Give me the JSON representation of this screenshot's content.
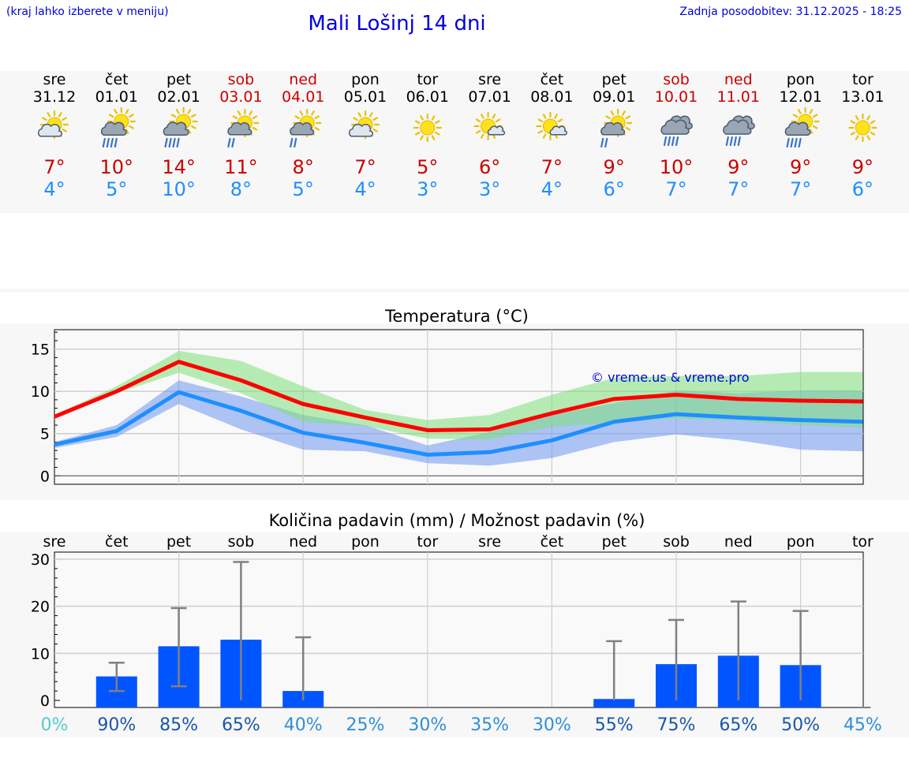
{
  "header": {
    "hint": "(kraj lahko izberete v meniju)",
    "title": "Mali Lošinj 14 dni",
    "updated": "Zadnja posodobitev: 31.12.2025 - 18:25"
  },
  "colors": {
    "weekday": "#000000",
    "weekend": "#cc0000",
    "temp_max": "#cc0000",
    "temp_min": "#1e8fff",
    "max_line": "#ff0000",
    "max_band": "#7ee07a",
    "min_line": "#1e8fff",
    "min_band": "#6f97f0",
    "precip_bar": "#0055ff",
    "whisker": "#808080"
  },
  "forecast": [
    {
      "day": "sre",
      "date": "31.12",
      "weekend": false,
      "icon": "sun-cloud-icon",
      "max": "7°",
      "min": "4°"
    },
    {
      "day": "čet",
      "date": "01.01",
      "weekend": false,
      "icon": "sun-cloud-rain-icon",
      "max": "10°",
      "min": "5°"
    },
    {
      "day": "pet",
      "date": "02.01",
      "weekend": false,
      "icon": "sun-cloud-rain-icon",
      "max": "14°",
      "min": "10°"
    },
    {
      "day": "sob",
      "date": "03.01",
      "weekend": true,
      "icon": "sun-cloud-light-rain-icon",
      "max": "11°",
      "min": "8°"
    },
    {
      "day": "ned",
      "date": "04.01",
      "weekend": true,
      "icon": "sun-cloud-light-rain-icon",
      "max": "8°",
      "min": "5°"
    },
    {
      "day": "pon",
      "date": "05.01",
      "weekend": false,
      "icon": "sun-cloud-icon",
      "max": "7°",
      "min": "4°"
    },
    {
      "day": "tor",
      "date": "06.01",
      "weekend": false,
      "icon": "sun-icon",
      "max": "5°",
      "min": "3°"
    },
    {
      "day": "sre",
      "date": "07.01",
      "weekend": false,
      "icon": "sun-small-cloud-icon",
      "max": "6°",
      "min": "3°"
    },
    {
      "day": "čet",
      "date": "08.01",
      "weekend": false,
      "icon": "sun-small-cloud-icon",
      "max": "7°",
      "min": "4°"
    },
    {
      "day": "pet",
      "date": "09.01",
      "weekend": false,
      "icon": "sun-cloud-light-rain-icon",
      "max": "9°",
      "min": "6°"
    },
    {
      "day": "sob",
      "date": "10.01",
      "weekend": true,
      "icon": "cloud-rain-icon",
      "max": "10°",
      "min": "7°"
    },
    {
      "day": "ned",
      "date": "11.01",
      "weekend": true,
      "icon": "cloud-rain-icon",
      "max": "9°",
      "min": "7°"
    },
    {
      "day": "pon",
      "date": "12.01",
      "weekend": false,
      "icon": "sun-cloud-rain-icon",
      "max": "9°",
      "min": "7°"
    },
    {
      "day": "tor",
      "date": "13.01",
      "weekend": false,
      "icon": "sun-icon",
      "max": "9°",
      "min": "6°"
    }
  ],
  "chart_data": [
    {
      "type": "line",
      "title": "Temperatura (°C)",
      "watermark": "© vreme.us & vreme.pro",
      "x": [
        0,
        1,
        2,
        3,
        4,
        5,
        6,
        7,
        8,
        9,
        10,
        11,
        12,
        13
      ],
      "ylim": [
        -1,
        17.3
      ],
      "yticks": [
        0,
        5,
        10,
        15
      ],
      "series": [
        {
          "name": "max",
          "values": [
            7.0,
            10.0,
            13.5,
            11.3,
            8.5,
            6.9,
            5.4,
            5.5,
            7.4,
            9.1,
            9.6,
            9.1,
            8.9,
            8.8
          ],
          "band_low": [
            6.8,
            9.8,
            12.2,
            9.8,
            6.4,
            5.9,
            4.4,
            4.3,
            5.8,
            6.3,
            6.8,
            6.5,
            6.0,
            5.7
          ],
          "band_high": [
            7.2,
            10.6,
            14.8,
            13.6,
            10.6,
            7.8,
            6.6,
            7.2,
            9.6,
            11.6,
            11.8,
            11.8,
            12.3,
            12.3
          ]
        },
        {
          "name": "min",
          "values": [
            3.7,
            5.3,
            9.9,
            7.7,
            5.1,
            3.9,
            2.5,
            2.8,
            4.2,
            6.4,
            7.3,
            6.9,
            6.6,
            6.4
          ],
          "band_low": [
            3.3,
            4.6,
            8.5,
            5.5,
            3.1,
            2.9,
            1.5,
            1.2,
            2.1,
            4.0,
            4.9,
            4.2,
            3.1,
            2.9
          ],
          "band_high": [
            4.0,
            6.0,
            11.3,
            9.4,
            7.2,
            6.0,
            3.6,
            5.2,
            7.2,
            8.6,
            10.1,
            9.8,
            10.1,
            10.1
          ]
        }
      ]
    },
    {
      "type": "bar",
      "title": "Količina padavin (mm) / Možnost padavin (%)",
      "categories": [
        "sre",
        "čet",
        "pet",
        "sob",
        "ned",
        "pon",
        "tor",
        "sre",
        "čet",
        "pet",
        "sob",
        "ned",
        "pon",
        "tor"
      ],
      "values": [
        0,
        5.1,
        11.5,
        12.9,
        2.0,
        0,
        0,
        0,
        0,
        0.3,
        7.7,
        9.5,
        7.5,
        0
      ],
      "error_low": [
        0,
        2.0,
        3.0,
        0,
        0,
        0,
        0,
        0,
        0,
        0,
        0,
        0,
        0,
        0
      ],
      "error_high": [
        0,
        8.0,
        19.6,
        29.4,
        13.4,
        0,
        0,
        0,
        0,
        12.6,
        17.1,
        21.0,
        19.0,
        0
      ],
      "probability": [
        "0%",
        "90%",
        "85%",
        "65%",
        "40%",
        "25%",
        "30%",
        "35%",
        "30%",
        "55%",
        "75%",
        "65%",
        "50%",
        "45%"
      ],
      "probability_colors": [
        "#55cccc",
        "#1a55aa",
        "#1a55aa",
        "#1a55aa",
        "#2f8fd8",
        "#2f8fd8",
        "#2f8fd8",
        "#2f8fd8",
        "#2f8fd8",
        "#1a55aa",
        "#1a55aa",
        "#1a55aa",
        "#1a55aa",
        "#2f8fd8"
      ],
      "ylim": [
        -1.5,
        31.5
      ],
      "yticks": [
        0,
        10,
        20,
        30
      ]
    }
  ]
}
